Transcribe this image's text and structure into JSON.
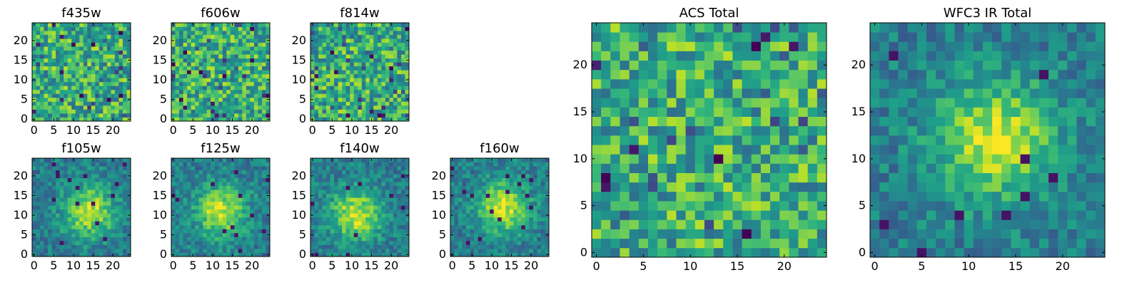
{
  "chart_data": [
    {
      "type": "heatmap",
      "title": "f435w",
      "xticks": [
        0,
        5,
        10,
        15,
        20
      ],
      "yticks": [
        0,
        5,
        10,
        15,
        20
      ],
      "xlim": [
        0,
        25
      ],
      "ylim": [
        0,
        25
      ],
      "grid_size": 25,
      "colormap": "viridis",
      "pattern": "noise"
    },
    {
      "type": "heatmap",
      "title": "f606w",
      "xticks": [
        0,
        5,
        10,
        15,
        20
      ],
      "yticks": [
        0,
        5,
        10,
        15,
        20
      ],
      "xlim": [
        0,
        25
      ],
      "ylim": [
        0,
        25
      ],
      "grid_size": 25,
      "colormap": "viridis",
      "pattern": "noise"
    },
    {
      "type": "heatmap",
      "title": "f814w",
      "xticks": [
        0,
        5,
        10,
        15,
        20
      ],
      "yticks": [
        0,
        5,
        10,
        15,
        20
      ],
      "xlim": [
        0,
        25
      ],
      "ylim": [
        0,
        25
      ],
      "grid_size": 25,
      "colormap": "viridis",
      "pattern": "noise"
    },
    {
      "type": "heatmap",
      "title": "f105w",
      "xticks": [
        0,
        5,
        10,
        15,
        20
      ],
      "yticks": [
        0,
        5,
        10,
        15,
        20
      ],
      "xlim": [
        0,
        25
      ],
      "ylim": [
        0,
        25
      ],
      "grid_size": 25,
      "colormap": "viridis",
      "pattern": "blob",
      "blob_center": [
        14,
        11
      ]
    },
    {
      "type": "heatmap",
      "title": "f125w",
      "xticks": [
        0,
        5,
        10,
        15,
        20
      ],
      "yticks": [
        0,
        5,
        10,
        15,
        20
      ],
      "xlim": [
        0,
        25
      ],
      "ylim": [
        0,
        25
      ],
      "grid_size": 25,
      "colormap": "viridis",
      "pattern": "blob",
      "blob_center": [
        12,
        11
      ]
    },
    {
      "type": "heatmap",
      "title": "f140w",
      "xticks": [
        0,
        5,
        10,
        15,
        20
      ],
      "yticks": [
        0,
        5,
        10,
        15,
        20
      ],
      "xlim": [
        0,
        25
      ],
      "ylim": [
        0,
        25
      ],
      "grid_size": 25,
      "colormap": "viridis",
      "pattern": "blob",
      "blob_center": [
        11,
        10
      ]
    },
    {
      "type": "heatmap",
      "title": "f160w",
      "xticks": [
        0,
        5,
        10,
        15,
        20
      ],
      "yticks": [
        0,
        5,
        10,
        15,
        20
      ],
      "xlim": [
        0,
        25
      ],
      "ylim": [
        0,
        25
      ],
      "grid_size": 25,
      "colormap": "viridis",
      "pattern": "blob",
      "blob_center": [
        13,
        12
      ]
    },
    {
      "type": "heatmap",
      "title": "ACS Total",
      "xticks": [
        0,
        5,
        10,
        15,
        20
      ],
      "yticks": [
        0,
        5,
        10,
        15,
        20
      ],
      "xlim": [
        0,
        25
      ],
      "ylim": [
        0,
        25
      ],
      "grid_size": 25,
      "colormap": "viridis",
      "pattern": "noise"
    },
    {
      "type": "heatmap",
      "title": "WFC3 IR Total",
      "xticks": [
        0,
        5,
        10,
        15,
        20
      ],
      "yticks": [
        0,
        5,
        10,
        15,
        20
      ],
      "xlim": [
        0,
        25
      ],
      "ylim": [
        0,
        25
      ],
      "grid_size": 25,
      "colormap": "viridis",
      "pattern": "blob",
      "blob_center": [
        13,
        12
      ]
    }
  ]
}
